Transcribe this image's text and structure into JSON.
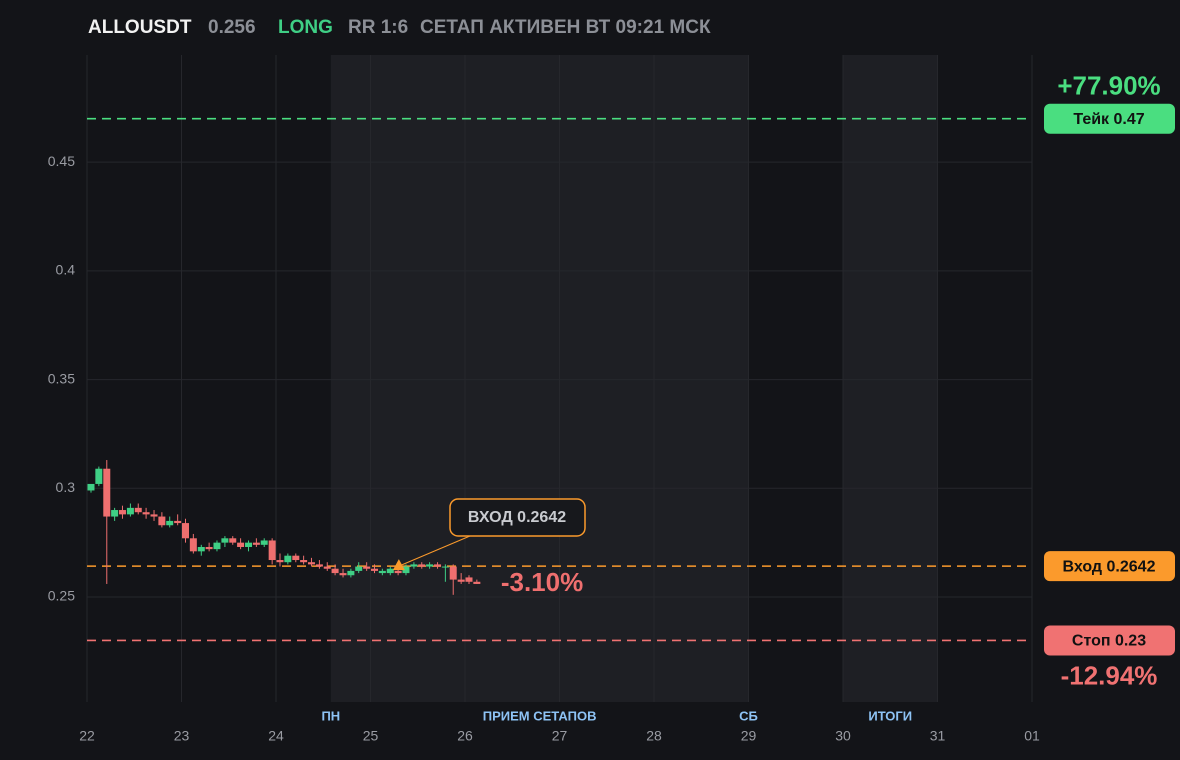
{
  "header": {
    "symbol": "ALLOUSDT",
    "price": "0.256",
    "side": "LONG",
    "rr": "RR 1:6",
    "status": "СЕТАП АКТИВЕН ВТ 09:21 МСК"
  },
  "chart_data": {
    "type": "candlestick",
    "x": [
      22,
      22.083,
      22.167,
      22.25,
      22.333,
      22.417,
      22.5,
      22.583,
      22.667,
      22.75,
      22.833,
      22.917,
      23,
      23.083,
      23.167,
      23.25,
      23.333,
      23.417,
      23.5,
      23.583,
      23.667,
      23.75,
      23.833,
      23.917,
      24,
      24.083,
      24.167,
      24.25,
      24.333,
      24.417,
      24.5,
      24.583,
      24.667,
      24.75,
      24.833,
      24.917,
      25,
      25.083,
      25.167,
      25.25,
      25.333,
      25.417,
      25.5,
      25.583,
      25.667,
      25.75,
      25.833,
      25.917,
      26,
      26.083
    ],
    "open": [
      0.299,
      0.302,
      0.309,
      0.287,
      0.29,
      0.288,
      0.291,
      0.289,
      0.288,
      0.287,
      0.283,
      0.285,
      0.284,
      0.277,
      0.271,
      0.273,
      0.272,
      0.275,
      0.277,
      0.275,
      0.273,
      0.275,
      0.274,
      0.276,
      0.267,
      0.266,
      0.269,
      0.267,
      0.266,
      0.265,
      0.264,
      0.263,
      0.261,
      0.26,
      0.262,
      0.264,
      0.263,
      0.261,
      0.261,
      0.262,
      0.261,
      0.264,
      0.265,
      0.264,
      0.265,
      0.264,
      0.264,
      0.258,
      0.259,
      0.257
    ],
    "high": [
      0.302,
      0.31,
      0.313,
      0.291,
      0.292,
      0.293,
      0.293,
      0.291,
      0.29,
      0.289,
      0.287,
      0.288,
      0.286,
      0.279,
      0.274,
      0.275,
      0.276,
      0.278,
      0.278,
      0.277,
      0.276,
      0.277,
      0.277,
      0.277,
      0.27,
      0.27,
      0.27,
      0.269,
      0.268,
      0.267,
      0.266,
      0.265,
      0.263,
      0.263,
      0.266,
      0.266,
      0.265,
      0.263,
      0.264,
      0.264,
      0.265,
      0.266,
      0.266,
      0.266,
      0.266,
      0.265,
      0.265,
      0.261,
      0.26,
      0.258
    ],
    "low": [
      0.298,
      0.301,
      0.256,
      0.285,
      0.286,
      0.287,
      0.288,
      0.286,
      0.285,
      0.282,
      0.282,
      0.283,
      0.275,
      0.27,
      0.269,
      0.271,
      0.271,
      0.273,
      0.274,
      0.272,
      0.271,
      0.273,
      0.273,
      0.265,
      0.264,
      0.265,
      0.266,
      0.265,
      0.264,
      0.263,
      0.262,
      0.26,
      0.259,
      0.259,
      0.261,
      0.262,
      0.261,
      0.26,
      0.26,
      0.26,
      0.26,
      0.263,
      0.263,
      0.263,
      0.263,
      0.257,
      0.251,
      0.256,
      0.256,
      0.256
    ],
    "close": [
      0.302,
      0.309,
      0.287,
      0.29,
      0.288,
      0.291,
      0.289,
      0.288,
      0.287,
      0.283,
      0.285,
      0.284,
      0.277,
      0.271,
      0.273,
      0.272,
      0.275,
      0.277,
      0.275,
      0.273,
      0.275,
      0.274,
      0.276,
      0.267,
      0.266,
      0.269,
      0.267,
      0.266,
      0.265,
      0.264,
      0.263,
      0.261,
      0.26,
      0.262,
      0.264,
      0.263,
      0.262,
      0.262,
      0.263,
      0.261,
      0.264,
      0.265,
      0.264,
      0.265,
      0.264,
      0.264,
      0.258,
      0.257,
      0.257,
      0.256
    ],
    "up_color": "#3fcf85",
    "down_color": "#ef6f6f",
    "xlim": [
      22,
      32
    ],
    "xticks": [
      22,
      23,
      24,
      25,
      26,
      27,
      28,
      29,
      30,
      31,
      {
        "value": 32,
        "label": "01"
      }
    ],
    "ylim": [
      0.2017,
      0.4993
    ],
    "yticks": [
      0.25,
      0.3,
      0.35,
      0.4,
      0.45
    ],
    "grid": true,
    "shaded": [
      [
        24.58,
        29
      ],
      [
        30,
        31
      ]
    ],
    "sessions": [
      {
        "label": "ПН",
        "x": 24.58
      },
      {
        "label": "ПРИЕМ СЕТАПОВ",
        "x": 26.79
      },
      {
        "label": "СБ",
        "x": 29
      },
      {
        "label": "ИТОГИ",
        "x": 30.5
      }
    ],
    "levels": [
      {
        "label": "Тейк 0.47",
        "value": 0.47,
        "color": "#4ade80",
        "percent": "+77.90%"
      },
      {
        "label": "Вход 0.2642",
        "value": 0.2642,
        "color": "#fb9a2c"
      },
      {
        "label": "Стоп 0.23",
        "value": 0.23,
        "color": "#f07272",
        "percent": "-12.94%"
      }
    ],
    "entry": {
      "label": "ВХОД 0.2642",
      "x": 25.3,
      "y": 0.2642,
      "color": "#fb9a2c"
    },
    "current_change": "-3.10%"
  }
}
